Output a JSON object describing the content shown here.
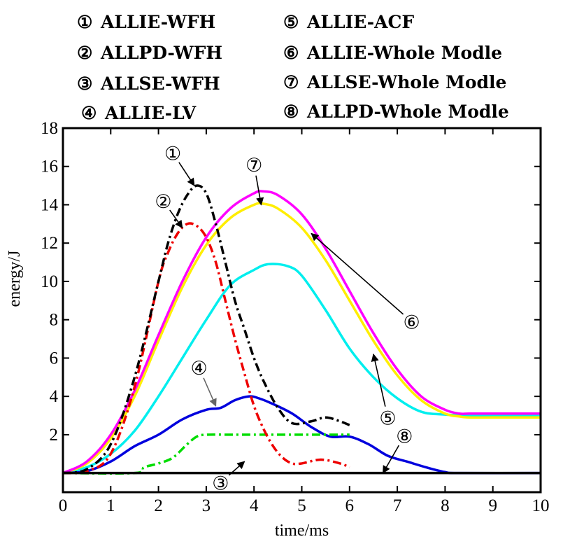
{
  "chart_data": {
    "type": "line",
    "xlabel": "time/ms",
    "ylabel": "energy/J",
    "xlim": [
      0,
      10
    ],
    "ylim": [
      -1,
      18
    ],
    "x_ticks": [
      "0",
      "1",
      "2",
      "3",
      "4",
      "5",
      "6",
      "7",
      "8",
      "9",
      "10"
    ],
    "y_ticks": [
      "2",
      "4",
      "6",
      "8",
      "10",
      "12",
      "14",
      "16",
      "18"
    ],
    "grid": false,
    "legend": [
      {
        "marker": "①",
        "text": "ALLIE-WFH"
      },
      {
        "marker": "②",
        "text": "ALLPD-WFH"
      },
      {
        "marker": "③",
        "text": "ALLSE-WFH"
      },
      {
        "marker": "④",
        "text": "ALLIE-LV"
      },
      {
        "marker": "⑤",
        "text": "ALLIE-ACF"
      },
      {
        "marker": "⑥",
        "text": "ALLIE-Whole Modle"
      },
      {
        "marker": "⑦",
        "text": "ALLSE-Whole Modle"
      },
      {
        "marker": "⑧",
        "text": "ALLPD-Whole Modle"
      }
    ],
    "series": [
      {
        "id": "s1",
        "color": "#000000",
        "dash": "12,5,3,5",
        "x": [
          0,
          0.5,
          1,
          1.5,
          2,
          2.2,
          2.4,
          2.6,
          2.8,
          3,
          3.2,
          3.4,
          3.6,
          3.8,
          4,
          4.2,
          4.5,
          4.8,
          5.2,
          5.5,
          5.8,
          6
        ],
        "y": [
          0,
          0.2,
          1.5,
          5,
          10,
          12,
          13.5,
          14.5,
          15,
          14.6,
          13,
          11,
          9,
          7.5,
          6,
          4.8,
          3.4,
          2.6,
          2.7,
          2.9,
          2.7,
          2.5
        ]
      },
      {
        "id": "s2",
        "color": "#ee0000",
        "dash": "12,5,3,5",
        "x": [
          0,
          0.5,
          1,
          1.5,
          2,
          2.2,
          2.4,
          2.6,
          2.8,
          3,
          3.2,
          3.4,
          3.6,
          3.8,
          4,
          4.2,
          4.4,
          4.6,
          4.8,
          5,
          5.4,
          5.8,
          6
        ],
        "y": [
          0,
          0.1,
          1,
          4.5,
          10,
          11.5,
          12.5,
          13,
          12.9,
          12.3,
          11,
          9,
          7,
          5.2,
          3.5,
          2.3,
          1.4,
          0.8,
          0.5,
          0.5,
          0.7,
          0.5,
          0.3
        ]
      },
      {
        "id": "s3",
        "color": "#00dd00",
        "dash": "12,5,3,5",
        "x": [
          0,
          1.5,
          1.7,
          2,
          2.3,
          2.6,
          2.8,
          3,
          3.5,
          4,
          5,
          5.5,
          6
        ],
        "y": [
          0,
          0,
          0.3,
          0.5,
          0.8,
          1.5,
          1.9,
          2,
          2,
          2,
          2,
          2,
          2
        ]
      },
      {
        "id": "s4",
        "color": "#0000dd",
        "dash": "",
        "x": [
          0,
          0.5,
          1,
          1.5,
          2,
          2.5,
          3,
          3.3,
          3.6,
          3.9,
          4.1,
          4.4,
          4.8,
          5.2,
          5.6,
          6,
          6.4,
          6.8,
          7.2,
          7.6,
          8,
          8.3,
          10
        ],
        "y": [
          0,
          0.1,
          0.6,
          1.4,
          2,
          2.8,
          3.3,
          3.4,
          3.8,
          4,
          3.9,
          3.6,
          3.1,
          2.4,
          1.9,
          1.9,
          1.5,
          0.9,
          0.6,
          0.3,
          0.05,
          0,
          0
        ]
      },
      {
        "id": "s5",
        "color": "#00eeee",
        "dash": "",
        "x": [
          0,
          0.5,
          1,
          1.5,
          2,
          2.5,
          3,
          3.5,
          4,
          4.3,
          4.7,
          5,
          5.5,
          6,
          6.5,
          7,
          7.5,
          8,
          8.5,
          9,
          10
        ],
        "y": [
          0,
          0.3,
          1,
          2.2,
          4,
          6,
          8,
          9.8,
          10.6,
          10.9,
          10.8,
          10.3,
          8.5,
          6.5,
          5,
          3.9,
          3.2,
          3.05,
          3,
          3,
          3
        ]
      },
      {
        "id": "s6",
        "color": "#ff00ff",
        "dash": "",
        "x": [
          0,
          0.5,
          1,
          1.5,
          2,
          2.5,
          3,
          3.5,
          4,
          4.2,
          4.5,
          5,
          5.5,
          6,
          6.5,
          7,
          7.5,
          8,
          8.3,
          8.5,
          9,
          10
        ],
        "y": [
          0,
          0.6,
          2,
          4.3,
          7.2,
          10,
          12.3,
          13.8,
          14.6,
          14.7,
          14.5,
          13.5,
          11.7,
          9.5,
          7.3,
          5.4,
          4,
          3.3,
          3.1,
          3.1,
          3.1,
          3.1
        ]
      },
      {
        "id": "s7",
        "color": "#ffee00",
        "dash": "",
        "x": [
          0,
          0.5,
          1,
          1.5,
          2,
          2.5,
          3,
          3.5,
          4,
          4.2,
          4.5,
          5,
          5.5,
          6,
          6.5,
          7,
          7.5,
          8,
          8.3,
          8.5,
          9,
          10
        ],
        "y": [
          0,
          0.5,
          1.8,
          4,
          6.9,
          9.7,
          11.9,
          13.3,
          14,
          14.05,
          13.8,
          12.8,
          11.1,
          9,
          6.9,
          5.1,
          3.8,
          3.1,
          2.95,
          2.9,
          2.9,
          2.9
        ]
      },
      {
        "id": "s8",
        "color": "#000000",
        "dash": "",
        "x": [
          0,
          10
        ],
        "y": [
          0,
          0
        ]
      }
    ],
    "annotations": [
      {
        "marker": "①",
        "x": 2.3,
        "y": 16.7,
        "arrow_to": [
          2.75,
          15
        ],
        "arrow_color": "#000000"
      },
      {
        "marker": "②",
        "x": 2.1,
        "y": 14.2,
        "arrow_to": [
          2.5,
          12.8
        ],
        "arrow_color": "#000000"
      },
      {
        "marker": "③",
        "x": 3.3,
        "y": -0.5,
        "arrow_to": [
          3.8,
          0.6
        ],
        "arrow_color": "#000000"
      },
      {
        "marker": "④",
        "x": 2.85,
        "y": 5.5,
        "arrow_to": [
          3.2,
          3.5
        ],
        "arrow_color": "#666666"
      },
      {
        "marker": "⑤",
        "x": 6.8,
        "y": 2.9,
        "arrow_to": [
          6.5,
          6.2
        ],
        "arrow_color": "#000000"
      },
      {
        "marker": "⑥",
        "x": 7.3,
        "y": 7.9,
        "arrow_to": [
          5.2,
          12.5
        ],
        "arrow_color": "#000000"
      },
      {
        "marker": "⑦",
        "x": 4.0,
        "y": 16.1,
        "arrow_to": [
          4.15,
          14
        ],
        "arrow_color": "#000000"
      },
      {
        "marker": "⑧",
        "x": 7.15,
        "y": 1.95,
        "arrow_to": [
          6.7,
          0
        ],
        "arrow_color": "#000000"
      }
    ]
  }
}
